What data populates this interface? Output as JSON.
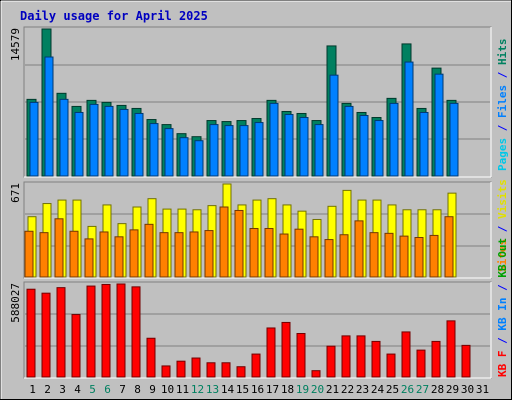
{
  "chart_data": [
    {
      "type": "bar",
      "title": "Daily usage for April 2025",
      "panel": "top",
      "categories": [
        "1",
        "2",
        "3",
        "4",
        "5",
        "6",
        "7",
        "8",
        "9",
        "10",
        "11",
        "12",
        "13",
        "14",
        "15",
        "16",
        "17",
        "18",
        "19",
        "20",
        "21",
        "22",
        "23",
        "24",
        "25",
        "26",
        "27",
        "28",
        "29",
        "30",
        "31"
      ],
      "ymax_label": "14579",
      "ylim": [
        0,
        14579
      ],
      "right_label_parts": [
        {
          "text": "Pages",
          "color": "#00c8e8"
        },
        {
          "text": " / ",
          "color": "#0000ff"
        },
        {
          "text": "Files",
          "color": "#0080ff"
        },
        {
          "text": " / ",
          "color": "#0000ff"
        },
        {
          "text": "Hits",
          "color": "#008060"
        }
      ],
      "series": [
        {
          "name": "Hits",
          "color": "#008060",
          "values": [
            7600,
            14579,
            8200,
            6900,
            7500,
            7300,
            7000,
            6700,
            5600,
            5100,
            4200,
            3900,
            5500,
            5400,
            5500,
            5700,
            7500,
            6400,
            6200,
            5500,
            12900,
            7200,
            6300,
            5800,
            7700,
            13100,
            6700,
            10700,
            7500,
            0,
            0
          ]
        },
        {
          "name": "Files",
          "color": "#0080ff",
          "values": [
            7300,
            11800,
            7600,
            6300,
            7100,
            6900,
            6600,
            6200,
            5200,
            4700,
            3800,
            3500,
            5100,
            5000,
            5000,
            5300,
            7200,
            6100,
            5800,
            5100,
            10000,
            6900,
            6000,
            5500,
            7200,
            11300,
            6300,
            10100,
            7200,
            0,
            0
          ]
        },
        {
          "name": "Pages",
          "color": "#00c8e8",
          "values": [
            0,
            0,
            0,
            0,
            0,
            0,
            0,
            0,
            0,
            0,
            0,
            0,
            0,
            0,
            0,
            0,
            0,
            0,
            0,
            0,
            0,
            0,
            0,
            0,
            0,
            0,
            0,
            0,
            0,
            0,
            0
          ]
        }
      ]
    },
    {
      "type": "bar",
      "panel": "middle",
      "categories": [
        "1",
        "2",
        "3",
        "4",
        "5",
        "6",
        "7",
        "8",
        "9",
        "10",
        "11",
        "12",
        "13",
        "14",
        "15",
        "16",
        "17",
        "18",
        "19",
        "20",
        "21",
        "22",
        "23",
        "24",
        "25",
        "26",
        "27",
        "28",
        "29",
        "30",
        "31"
      ],
      "ymax_label": "671",
      "ylim": [
        0,
        671
      ],
      "right_label_parts": [
        {
          "text": "Sites",
          "color": "#ff8000"
        },
        {
          "text": " / ",
          "color": "#0000ff"
        },
        {
          "text": "Visits",
          "color": "#e0e000"
        }
      ],
      "series": [
        {
          "name": "Visits",
          "color": "#ffff00",
          "values": [
            435,
            530,
            555,
            555,
            365,
            520,
            385,
            505,
            565,
            490,
            490,
            485,
            515,
            671,
            520,
            555,
            565,
            520,
            475,
            415,
            510,
            625,
            555,
            555,
            520,
            485,
            485,
            485,
            605,
            0,
            0
          ]
        },
        {
          "name": "Sites",
          "color": "#ff8000",
          "values": [
            330,
            320,
            420,
            330,
            275,
            325,
            290,
            340,
            380,
            320,
            320,
            325,
            335,
            505,
            480,
            350,
            350,
            310,
            345,
            290,
            270,
            305,
            405,
            320,
            315,
            295,
            285,
            300,
            435,
            0,
            0
          ]
        }
      ]
    },
    {
      "type": "bar",
      "panel": "bottom",
      "categories": [
        "1",
        "2",
        "3",
        "4",
        "5",
        "6",
        "7",
        "8",
        "9",
        "10",
        "11",
        "12",
        "13",
        "14",
        "15",
        "16",
        "17",
        "18",
        "19",
        "20",
        "21",
        "22",
        "23",
        "24",
        "25",
        "26",
        "27",
        "28",
        "29",
        "30",
        "31"
      ],
      "ymax_label": "588027",
      "ylim": [
        0,
        588027
      ],
      "right_label_parts": [
        {
          "text": "KB F",
          "color": "#ff0000"
        },
        {
          "text": " / ",
          "color": "#0000ff"
        },
        {
          "text": "KB In",
          "color": "#0080ff"
        },
        {
          "text": " / ",
          "color": "#0000ff"
        },
        {
          "text": "KB Out",
          "color": "#00a000"
        }
      ],
      "series": [
        {
          "name": "KB F",
          "color": "#ff0000",
          "values": [
            555000,
            530000,
            565000,
            395000,
            575000,
            585000,
            588027,
            570000,
            245000,
            70000,
            100000,
            120000,
            90000,
            90000,
            65000,
            145000,
            310000,
            345000,
            275000,
            40000,
            195000,
            260000,
            260000,
            225000,
            145000,
            285000,
            170000,
            225000,
            355000,
            200000,
            0
          ]
        }
      ]
    }
  ],
  "x_tick_label_colors": [
    "#000000",
    "#000000",
    "#000000",
    "#000000",
    "#008060",
    "#008060",
    "#000000",
    "#000000",
    "#000000",
    "#000000",
    "#000000",
    "#008060",
    "#008060",
    "#000000",
    "#000000",
    "#000000",
    "#000000",
    "#000000",
    "#008060",
    "#008060",
    "#000000",
    "#000000",
    "#000000",
    "#000000",
    "#000000",
    "#008060",
    "#008060",
    "#000000",
    "#000000",
    "#000000",
    "#000000"
  ],
  "colors": {
    "background": "#c0c0c0",
    "plot_background": "#c0c0c0",
    "grid": "#808080",
    "title": "#0000c0",
    "x_ticks_weekday": "#000000",
    "x_ticks_weekend": "#008060"
  }
}
